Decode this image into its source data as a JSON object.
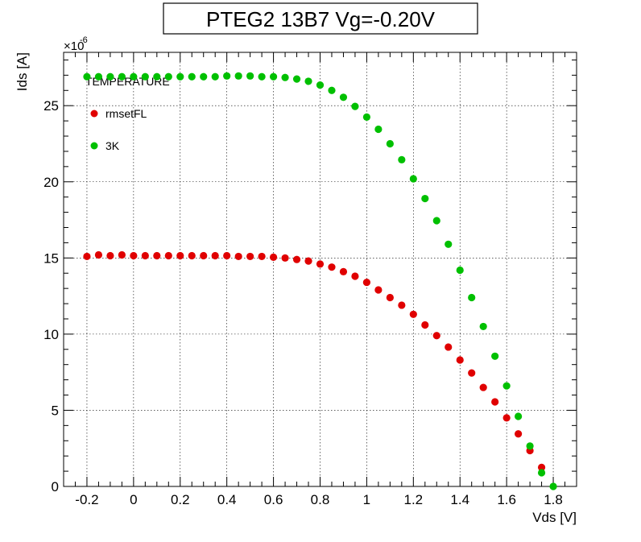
{
  "chart_data": {
    "type": "scatter",
    "title": "PTEG2 13B7 Vg=-0.20V",
    "xlabel": "Vds [V]",
    "ylabel": "Ids [A]",
    "y_multiplier": "×10",
    "y_exponent": "-6",
    "xlim": [
      -0.3,
      1.9
    ],
    "ylim": [
      0,
      28.5
    ],
    "x_ticks": [
      -0.2,
      0,
      0.2,
      0.4,
      0.6,
      0.8,
      1,
      1.2,
      1.4,
      1.6,
      1.8
    ],
    "x_tick_labels": [
      "-0.2",
      "0",
      "0.2",
      "0.4",
      "0.6",
      "0.8",
      "1",
      "1.2",
      "1.4",
      "1.6",
      "1.8"
    ],
    "y_ticks": [
      0,
      5,
      10,
      15,
      20,
      25
    ],
    "y_tick_labels": [
      "0",
      "5",
      "10",
      "15",
      "20",
      "25"
    ],
    "grid": true,
    "legend": {
      "placement": "top-left",
      "header": "TEMPERATURE",
      "entries": [
        {
          "label": "rmsetFL",
          "color": "#e00000"
        },
        {
          "label": "3K",
          "color": "#00c000"
        }
      ]
    },
    "series": [
      {
        "name": "rmsetFL",
        "color": "#e00000",
        "x": [
          -0.2,
          -0.15,
          -0.1,
          -0.05,
          0,
          0.05,
          0.1,
          0.15,
          0.2,
          0.25,
          0.3,
          0.35,
          0.4,
          0.45,
          0.5,
          0.55,
          0.6,
          0.65,
          0.7,
          0.75,
          0.8,
          0.85,
          0.9,
          0.95,
          1.0,
          1.05,
          1.1,
          1.15,
          1.2,
          1.25,
          1.3,
          1.35,
          1.4,
          1.45,
          1.5,
          1.55,
          1.6,
          1.65,
          1.7,
          1.75
        ],
        "y": [
          15.1,
          15.2,
          15.15,
          15.2,
          15.15,
          15.15,
          15.15,
          15.15,
          15.15,
          15.15,
          15.15,
          15.15,
          15.15,
          15.1,
          15.1,
          15.1,
          15.05,
          15.0,
          14.9,
          14.8,
          14.6,
          14.4,
          14.1,
          13.8,
          13.4,
          12.9,
          12.4,
          11.9,
          11.3,
          10.6,
          9.9,
          9.15,
          8.3,
          7.45,
          6.5,
          5.55,
          4.5,
          3.45,
          2.35,
          1.25
        ]
      },
      {
        "name": "3K",
        "color": "#00c000",
        "x": [
          -0.2,
          -0.15,
          -0.1,
          -0.05,
          0,
          0.05,
          0.1,
          0.15,
          0.2,
          0.25,
          0.3,
          0.35,
          0.4,
          0.45,
          0.5,
          0.55,
          0.6,
          0.65,
          0.7,
          0.75,
          0.8,
          0.85,
          0.9,
          0.95,
          1.0,
          1.05,
          1.1,
          1.15,
          1.2,
          1.25,
          1.3,
          1.35,
          1.4,
          1.45,
          1.5,
          1.55,
          1.6,
          1.65,
          1.7,
          1.75,
          1.8
        ],
        "y": [
          26.9,
          26.9,
          26.9,
          26.9,
          26.9,
          26.9,
          26.9,
          26.9,
          26.9,
          26.9,
          26.9,
          26.9,
          26.95,
          26.95,
          26.95,
          26.9,
          26.9,
          26.85,
          26.75,
          26.6,
          26.35,
          26.0,
          25.55,
          24.95,
          24.25,
          23.45,
          22.5,
          21.45,
          20.2,
          18.9,
          17.45,
          15.9,
          14.2,
          12.4,
          10.5,
          8.55,
          6.6,
          4.6,
          2.65,
          0.9,
          0.0
        ]
      }
    ]
  }
}
